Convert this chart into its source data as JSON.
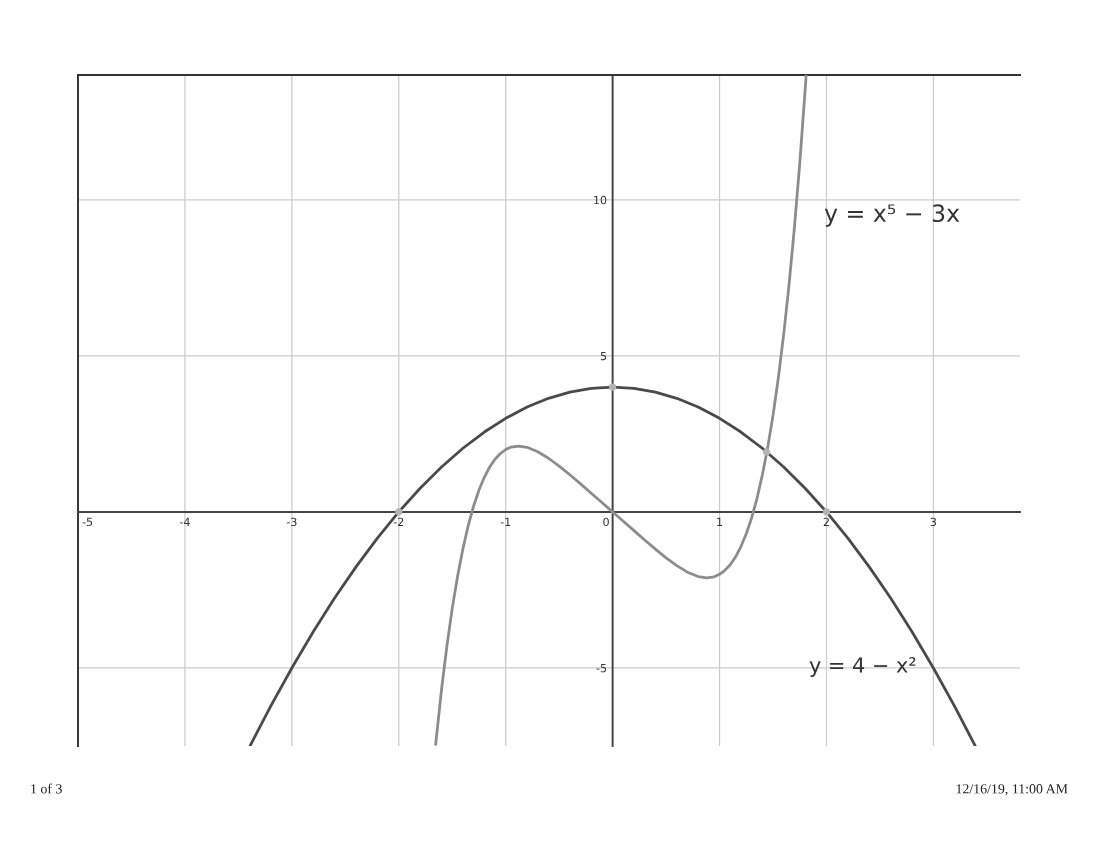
{
  "chart_data": {
    "type": "line",
    "xlim": [
      -5,
      3.81
    ],
    "ylim": [
      -7.5,
      14
    ],
    "xticks": [
      -5,
      -4,
      -3,
      -2,
      -1,
      0,
      1,
      2,
      3
    ],
    "yticks": [
      -5,
      5,
      10
    ],
    "grid": true,
    "line_style": "solid",
    "series": [
      {
        "color": "#4a4a4a",
        "x": [
          -3.39,
          -3.2,
          -3.0,
          -2.8,
          -2.6,
          -2.4,
          -2.2,
          -2.0,
          -1.8,
          -1.6,
          -1.4,
          -1.2,
          -1.0,
          -0.8,
          -0.6,
          -0.4,
          -0.2,
          0,
          0.2,
          0.4,
          0.6,
          0.8,
          1.0,
          1.2,
          1.4,
          1.6,
          1.8,
          2.0,
          2.2,
          2.4,
          2.6,
          2.8,
          3.0,
          3.2,
          3.39
        ],
        "values": [
          -7.49,
          -6.24,
          -5,
          -3.84,
          -2.76,
          -1.76,
          -0.84,
          0,
          0.76,
          1.44,
          2.04,
          2.56,
          3,
          3.36,
          3.64,
          3.84,
          3.96,
          4,
          3.96,
          3.84,
          3.64,
          3.36,
          3,
          2.56,
          2.04,
          1.44,
          0.76,
          0,
          -0.84,
          -1.76,
          -2.76,
          -3.84,
          -5,
          -6.24,
          -7.49
        ]
      },
      {
        "color": "#8c8c8c",
        "x": [
          -1.655,
          -1.6,
          -1.55,
          -1.5,
          -1.45,
          -1.4,
          -1.35,
          -1.3,
          -1.25,
          -1.2,
          -1.15,
          -1.1,
          -1.05,
          -1.0,
          -0.95,
          -0.88,
          -0.8,
          -0.7,
          -0.6,
          -0.5,
          -0.4,
          -0.3,
          -0.2,
          -0.1,
          0,
          0.1,
          0.2,
          0.3,
          0.4,
          0.5,
          0.6,
          0.7,
          0.8,
          0.88,
          0.95,
          1.0,
          1.05,
          1.1,
          1.15,
          1.2,
          1.25,
          1.3,
          1.35,
          1.4,
          1.45,
          1.5,
          1.55,
          1.6,
          1.65,
          1.7,
          1.75,
          1.8,
          1.81
        ],
        "values": [
          -7.45,
          -5.69,
          -4.3,
          -3.09,
          -2.06,
          -1.18,
          -0.43,
          0.19,
          0.7,
          1.11,
          1.44,
          1.69,
          1.87,
          2,
          2.08,
          2.11,
          2.07,
          1.93,
          1.72,
          1.47,
          1.19,
          0.9,
          0.6,
          0.3,
          0,
          -0.3,
          -0.6,
          -0.9,
          -1.19,
          -1.47,
          -1.72,
          -1.93,
          -2.07,
          -2.11,
          -2.08,
          -2,
          -1.87,
          -1.69,
          -1.44,
          -1.11,
          -0.7,
          -0.19,
          0.43,
          1.18,
          2.06,
          3.09,
          4.3,
          5.69,
          7.28,
          9.1,
          11.16,
          13.5,
          14.0
        ]
      },
      {
        "type": "scatter",
        "color": "#b4b4b4",
        "marker": "circle",
        "x": [
          0,
          -2,
          2,
          1.44
        ],
        "values": [
          4,
          0,
          0,
          1.92
        ]
      }
    ],
    "annotations": [
      "y = x⁵ − 3x",
      "y = 4 − x²",
      "1 of 3",
      "12/16/19, 11:00 AM"
    ]
  }
}
